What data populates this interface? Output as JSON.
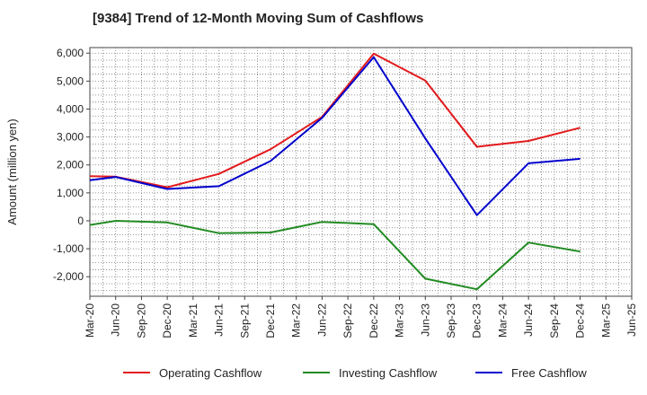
{
  "chart_data": {
    "type": "line",
    "title": "[9384]  Trend of 12-Month Moving Sum of Cashflows",
    "xlabel": "",
    "ylabel": "Amount (million yen)",
    "ylim": [
      -2700,
      6200
    ],
    "yticks": [
      6000,
      5000,
      4000,
      3000,
      2000,
      1000,
      0,
      -1000,
      -2000
    ],
    "ytick_labels": [
      "6,000",
      "5,000",
      "4,000",
      "3,000",
      "2,000",
      "1,000",
      "0",
      "-1,000",
      "-2,000"
    ],
    "categories": [
      "Mar-20",
      "Jun-20",
      "Sep-20",
      "Dec-20",
      "Mar-21",
      "Jun-21",
      "Sep-21",
      "Dec-21",
      "Mar-22",
      "Jun-22",
      "Sep-22",
      "Dec-22",
      "Mar-23",
      "Jun-23",
      "Sep-23",
      "Dec-23",
      "Mar-24",
      "Jun-24",
      "Sep-24",
      "Dec-24",
      "Mar-25",
      "Jun-25"
    ],
    "grid": true,
    "legend_position": "bottom",
    "series": [
      {
        "name": "Operating Cashflow",
        "color": "#e31a1c",
        "values": [
          1600,
          1580,
          null,
          1200,
          null,
          1680,
          null,
          2560,
          null,
          3720,
          null,
          5980,
          null,
          5020,
          null,
          2650,
          null,
          2860,
          null,
          3330,
          null,
          null
        ]
      },
      {
        "name": "Investing Cashflow",
        "color": "#228b22",
        "values": [
          -150,
          0,
          null,
          -60,
          null,
          -440,
          null,
          -420,
          null,
          -40,
          null,
          -120,
          null,
          -2070,
          null,
          -2450,
          null,
          -780,
          null,
          -1100,
          null,
          null
        ]
      },
      {
        "name": "Free Cashflow",
        "color": "#0000cd",
        "values": [
          1450,
          1570,
          null,
          1140,
          null,
          1240,
          null,
          2140,
          null,
          3680,
          null,
          5860,
          null,
          2950,
          null,
          200,
          null,
          2060,
          null,
          2220,
          null,
          null
        ]
      }
    ]
  }
}
